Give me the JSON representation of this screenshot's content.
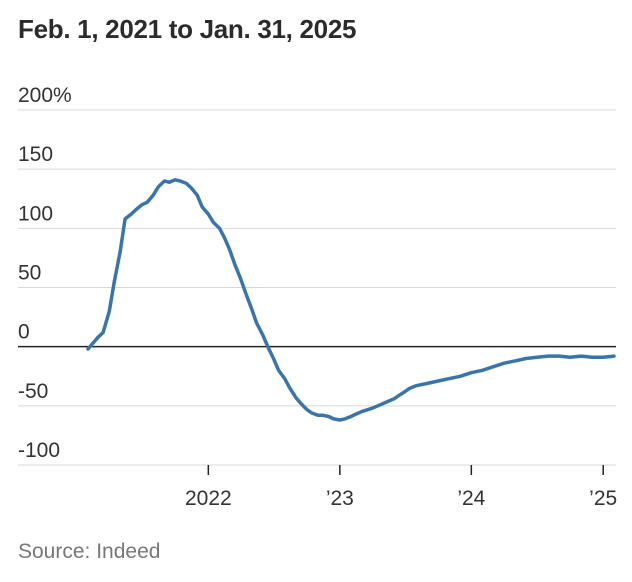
{
  "title": "Feb. 1, 2021 to Jan. 31, 2025",
  "source": "Source: Indeed",
  "colors": {
    "line": "#3a74a8",
    "grid": "#d8d8d8",
    "zero": "#222222",
    "text": "#333333"
  },
  "chart_data": {
    "type": "line",
    "title": "Feb. 1, 2021 to Jan. 31, 2025",
    "xlabel": "",
    "ylabel": "",
    "ylim": [
      -100,
      200
    ],
    "xlim": [
      "2021-02-01",
      "2025-01-31"
    ],
    "y_ticks": [
      {
        "value": 200,
        "label": "200%"
      },
      {
        "value": 150,
        "label": "150"
      },
      {
        "value": 100,
        "label": "100"
      },
      {
        "value": 50,
        "label": "50"
      },
      {
        "value": 0,
        "label": "0"
      },
      {
        "value": -50,
        "label": "-50"
      },
      {
        "value": -100,
        "label": "-100"
      }
    ],
    "x_ticks": [
      {
        "date": "2022-01-01",
        "label": "2022"
      },
      {
        "date": "2023-01-01",
        "label": "’23"
      },
      {
        "date": "2024-01-01",
        "label": "’24"
      },
      {
        "date": "2025-01-01",
        "label": "’25"
      }
    ],
    "grid": true,
    "series": [
      {
        "x": [
          "2021-02-01",
          "2021-02-15",
          "2021-03-01",
          "2021-03-15",
          "2021-04-01",
          "2021-04-15",
          "2021-05-01",
          "2021-05-15",
          "2021-06-01",
          "2021-06-15",
          "2021-07-01",
          "2021-07-15",
          "2021-08-01",
          "2021-08-15",
          "2021-09-01",
          "2021-09-15",
          "2021-10-01",
          "2021-10-15",
          "2021-11-01",
          "2021-11-15",
          "2021-12-01",
          "2021-12-15",
          "2022-01-01",
          "2022-01-15",
          "2022-02-01",
          "2022-02-15",
          "2022-03-01",
          "2022-03-15",
          "2022-04-01",
          "2022-04-15",
          "2022-05-01",
          "2022-05-15",
          "2022-06-01",
          "2022-06-15",
          "2022-07-01",
          "2022-07-15",
          "2022-08-01",
          "2022-08-15",
          "2022-09-01",
          "2022-09-15",
          "2022-10-01",
          "2022-10-15",
          "2022-11-01",
          "2022-11-15",
          "2022-12-01",
          "2022-12-15",
          "2023-01-01",
          "2023-01-15",
          "2023-02-01",
          "2023-02-15",
          "2023-03-01",
          "2023-04-01",
          "2023-05-01",
          "2023-06-01",
          "2023-06-15",
          "2023-07-01",
          "2023-07-15",
          "2023-08-01",
          "2023-09-01",
          "2023-10-01",
          "2023-11-01",
          "2023-12-01",
          "2024-01-01",
          "2024-02-01",
          "2024-03-01",
          "2024-04-01",
          "2024-05-01",
          "2024-06-01",
          "2024-07-01",
          "2024-08-01",
          "2024-09-01",
          "2024-10-01",
          "2024-11-01",
          "2024-12-01",
          "2025-01-01",
          "2025-01-31"
        ],
        "values": [
          -2,
          3,
          8,
          12,
          30,
          55,
          80,
          108,
          112,
          116,
          120,
          122,
          128,
          135,
          140,
          139,
          141,
          140,
          138,
          134,
          128,
          118,
          112,
          105,
          100,
          92,
          82,
          70,
          57,
          45,
          32,
          20,
          10,
          0,
          -10,
          -20,
          -27,
          -35,
          -43,
          -48,
          -53,
          -56,
          -58,
          -58,
          -59,
          -61,
          -62,
          -61,
          -59,
          -57,
          -55,
          -52,
          -48,
          -44,
          -41,
          -38,
          -35,
          -33,
          -31,
          -29,
          -27,
          -25,
          -22,
          -20,
          -17,
          -14,
          -12,
          -10,
          -9,
          -8,
          -8,
          -9,
          -8,
          -9,
          -9,
          -8
        ]
      }
    ]
  }
}
